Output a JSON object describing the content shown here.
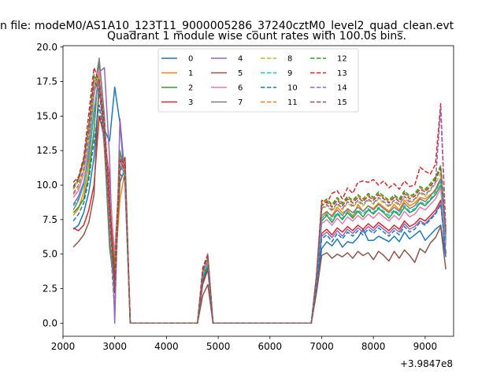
{
  "suptitle": "n file: modeM0/AS1A10_123T11_9000005286_37240cztM0_level2_quad_clean.evt",
  "chart_data": {
    "type": "line",
    "title": "Quadrant 1 module wise count rates with 100.0s bins.",
    "xlabel": "",
    "ylabel": "",
    "x_offset_label": "+3.9847e8",
    "xlim": [
      2000,
      9550
    ],
    "ylim": [
      -0.95,
      20.1
    ],
    "xticks": [
      2000,
      3000,
      4000,
      5000,
      6000,
      7000,
      8000,
      9000
    ],
    "yticks": [
      0.0,
      2.5,
      5.0,
      7.5,
      10.0,
      12.5,
      15.0,
      17.5,
      20.0
    ],
    "ytick_labels": [
      "0.0",
      "2.5",
      "5.0",
      "7.5",
      "10.0",
      "12.5",
      "15.0",
      "17.5",
      "20.0"
    ],
    "grid": false,
    "legend": {
      "placement": "top-center",
      "columns": 4
    },
    "x": [
      2200,
      2300,
      2400,
      2500,
      2600,
      2700,
      2800,
      2900,
      3000,
      3100,
      3200,
      3300,
      3400,
      4600,
      4700,
      4800,
      4900,
      5000,
      5100,
      6800,
      6900,
      7000,
      7100,
      7200,
      7300,
      7400,
      7500,
      7600,
      7700,
      7800,
      7900,
      8000,
      8100,
      8200,
      8300,
      8400,
      8500,
      8600,
      8700,
      8800,
      8900,
      9000,
      9100,
      9200,
      9300,
      9400
    ],
    "series": [
      {
        "name": "0",
        "color": "#1f77b4",
        "dash": false,
        "values": [
          6.8,
          7.1,
          8.0,
          9.5,
          12.0,
          17.0,
          14.0,
          13.2,
          17.1,
          14.5,
          10.0,
          0,
          0,
          0,
          3.0,
          4.0,
          0,
          0,
          0,
          0,
          2.5,
          5.4,
          5.9,
          5.6,
          6.1,
          5.5,
          5.9,
          5.8,
          6.2,
          6.8,
          6.0,
          6.0,
          6.3,
          6.1,
          5.9,
          6.3,
          5.9,
          6.6,
          6.1,
          6.4,
          6.7,
          6.0,
          6.4,
          6.8,
          7.1,
          4.8
        ]
      },
      {
        "name": "1",
        "color": "#ff7f0e",
        "dash": false,
        "values": [
          7.8,
          8.3,
          9.5,
          11.5,
          15.5,
          18.0,
          12.5,
          7.0,
          3.5,
          9.0,
          11.0,
          0,
          0,
          0,
          3.2,
          4.2,
          0,
          0,
          0,
          0,
          3.0,
          7.6,
          8.0,
          7.8,
          8.4,
          8.0,
          8.2,
          7.7,
          8.6,
          8.1,
          8.5,
          8.3,
          8.7,
          8.4,
          8.1,
          8.6,
          8.2,
          8.9,
          8.5,
          8.7,
          9.1,
          9.0,
          9.3,
          9.6,
          10.3,
          6.2
        ]
      },
      {
        "name": "2",
        "color": "#2ca02c",
        "dash": false,
        "values": [
          8.0,
          8.4,
          9.0,
          10.8,
          14.0,
          19.0,
          13.0,
          5.5,
          2.5,
          12.0,
          10.5,
          0,
          0,
          0,
          3.3,
          4.1,
          0,
          0,
          0,
          0,
          2.9,
          7.4,
          7.8,
          7.3,
          7.9,
          7.5,
          8.0,
          7.6,
          8.1,
          7.7,
          8.2,
          7.9,
          8.3,
          8.0,
          7.6,
          8.1,
          7.8,
          8.4,
          8.0,
          8.2,
          8.7,
          8.5,
          8.9,
          9.3,
          10.0,
          5.8
        ]
      },
      {
        "name": "3",
        "color": "#d62728",
        "dash": false,
        "values": [
          6.9,
          6.7,
          7.1,
          8.2,
          10.0,
          15.0,
          13.5,
          10.5,
          4.0,
          11.0,
          12.0,
          0,
          0,
          0,
          2.8,
          3.9,
          0,
          0,
          0,
          0,
          2.6,
          6.5,
          6.8,
          6.4,
          6.9,
          6.6,
          7.0,
          6.7,
          7.1,
          6.8,
          7.2,
          6.9,
          7.3,
          7.0,
          6.7,
          7.1,
          6.8,
          7.4,
          7.0,
          7.2,
          7.6,
          7.4,
          7.8,
          8.2,
          8.9,
          5.0
        ]
      },
      {
        "name": "4",
        "color": "#9467bd",
        "dash": false,
        "values": [
          8.6,
          9.2,
          10.2,
          12.0,
          15.2,
          18.2,
          18.5,
          12.0,
          0.0,
          14.8,
          10.6,
          0,
          0,
          0,
          3.4,
          4.4,
          0,
          0,
          0,
          0,
          2.7,
          6.3,
          6.6,
          6.2,
          6.7,
          6.3,
          6.8,
          6.5,
          6.9,
          6.6,
          7.0,
          6.7,
          7.1,
          6.8,
          6.5,
          6.9,
          6.6,
          7.2,
          6.8,
          7.0,
          7.4,
          7.2,
          7.6,
          8.0,
          8.7,
          5.0
        ]
      },
      {
        "name": "5",
        "color": "#8c564b",
        "dash": false,
        "values": [
          5.5,
          5.9,
          6.4,
          7.3,
          9.3,
          17.8,
          13.2,
          9.5,
          3.5,
          10.2,
          11.2,
          0,
          0,
          0,
          2.0,
          2.8,
          0,
          0,
          0,
          0,
          2.2,
          4.9,
          5.1,
          4.7,
          5.0,
          4.8,
          5.1,
          4.7,
          5.2,
          4.9,
          5.1,
          4.6,
          5.2,
          4.9,
          4.5,
          5.2,
          4.7,
          5.3,
          4.9,
          4.4,
          5.4,
          5.1,
          5.8,
          6.2,
          7.0,
          3.9
        ]
      },
      {
        "name": "6",
        "color": "#e377c2",
        "dash": false,
        "values": [
          9.1,
          9.6,
          10.8,
          13.0,
          16.5,
          18.4,
          14.5,
          9.5,
          5.0,
          11.8,
          10.8,
          0,
          0,
          0,
          3.6,
          4.5,
          0,
          0,
          0,
          0,
          3.1,
          7.2,
          7.5,
          7.1,
          7.6,
          7.2,
          7.7,
          7.4,
          7.8,
          7.5,
          7.9,
          7.6,
          8.0,
          7.7,
          7.4,
          7.8,
          7.5,
          8.1,
          7.7,
          7.9,
          8.4,
          8.2,
          8.6,
          9.0,
          9.8,
          5.6
        ]
      },
      {
        "name": "7",
        "color": "#7f7f7f",
        "dash": false,
        "values": [
          8.2,
          8.9,
          10.0,
          12.5,
          16.8,
          19.2,
          15.0,
          6.0,
          2.8,
          12.5,
          11.0,
          0,
          0,
          0,
          3.5,
          4.6,
          0,
          0,
          0,
          0,
          3.0,
          7.8,
          8.1,
          7.7,
          8.2,
          7.8,
          8.3,
          8.0,
          8.4,
          8.1,
          8.5,
          8.2,
          8.6,
          8.3,
          8.0,
          8.4,
          8.1,
          8.7,
          8.3,
          8.5,
          9.0,
          8.8,
          9.2,
          9.7,
          10.5,
          6.0
        ]
      },
      {
        "name": "8",
        "color": "#bcbd22",
        "dash": true,
        "values": [
          9.3,
          9.8,
          11.0,
          13.2,
          16.8,
          18.0,
          14.0,
          8.0,
          3.8,
          12.2,
          11.0,
          0,
          0,
          0,
          3.6,
          4.5,
          0,
          0,
          0,
          0,
          3.3,
          8.2,
          8.5,
          8.1,
          8.6,
          8.2,
          8.7,
          8.4,
          8.8,
          8.5,
          8.9,
          8.6,
          9.0,
          8.7,
          8.4,
          8.8,
          8.5,
          9.1,
          8.7,
          8.9,
          9.4,
          9.2,
          9.6,
          10.1,
          10.9,
          6.4
        ]
      },
      {
        "name": "9",
        "color": "#17becf",
        "dash": true,
        "values": [
          8.5,
          9.0,
          10.0,
          12.0,
          15.5,
          17.5,
          14.2,
          8.5,
          3.0,
          11.5,
          10.6,
          0,
          0,
          0,
          3.4,
          4.3,
          0,
          0,
          0,
          0,
          3.0,
          7.6,
          7.9,
          7.5,
          8.0,
          7.6,
          8.1,
          7.8,
          8.2,
          7.9,
          8.3,
          8.0,
          8.4,
          8.1,
          7.8,
          8.2,
          7.9,
          8.5,
          8.1,
          8.3,
          8.8,
          8.6,
          9.0,
          9.5,
          10.3,
          6.0
        ]
      },
      {
        "name": "10",
        "color": "#1f77b4",
        "dash": true,
        "values": [
          7.4,
          7.9,
          8.7,
          10.4,
          13.2,
          15.8,
          13.0,
          9.0,
          3.0,
          10.8,
          10.4,
          0,
          0,
          0,
          3.1,
          4.0,
          0,
          0,
          0,
          0,
          2.7,
          6.1,
          6.4,
          5.9,
          6.5,
          6.1,
          6.6,
          6.3,
          6.7,
          6.4,
          6.8,
          6.5,
          6.9,
          6.6,
          6.3,
          6.7,
          6.4,
          7.0,
          6.6,
          6.8,
          7.3,
          7.1,
          7.5,
          7.9,
          8.6,
          5.0
        ]
      },
      {
        "name": "11",
        "color": "#ff7f0e",
        "dash": true,
        "values": [
          9.7,
          10.3,
          11.6,
          14.0,
          17.8,
          17.0,
          13.6,
          8.0,
          4.2,
          12.0,
          11.2,
          0,
          0,
          0,
          3.7,
          4.6,
          0,
          0,
          0,
          0,
          3.3,
          8.6,
          8.9,
          8.5,
          9.0,
          8.6,
          9.1,
          8.8,
          9.2,
          8.9,
          9.3,
          9.0,
          9.4,
          9.1,
          8.8,
          9.2,
          8.9,
          9.5,
          9.1,
          9.3,
          9.8,
          9.6,
          10.0,
          10.5,
          11.3,
          6.6
        ]
      },
      {
        "name": "12",
        "color": "#2ca02c",
        "dash": true,
        "values": [
          9.8,
          10.4,
          11.7,
          14.2,
          18.0,
          17.2,
          13.8,
          8.2,
          4.0,
          12.2,
          11.4,
          0,
          0,
          0,
          3.8,
          4.7,
          0,
          0,
          0,
          0,
          3.4,
          8.7,
          9.0,
          8.6,
          9.1,
          8.7,
          9.2,
          8.9,
          9.3,
          9.0,
          9.4,
          9.1,
          9.5,
          9.2,
          8.9,
          9.3,
          9.0,
          9.6,
          9.2,
          9.4,
          9.9,
          9.7,
          10.1,
          10.6,
          11.4,
          6.7
        ]
      },
      {
        "name": "13",
        "color": "#d62728",
        "dash": true,
        "values": [
          10.2,
          10.6,
          12.0,
          15.2,
          18.5,
          17.5,
          14.5,
          9.0,
          3.2,
          12.0,
          11.4,
          0,
          0,
          0,
          4.0,
          5.0,
          0,
          0,
          0,
          0,
          3.5,
          8.9,
          8.7,
          9.4,
          9.6,
          9.0,
          9.8,
          9.4,
          10.2,
          10.3,
          10.2,
          10.4,
          10.0,
          10.3,
          9.8,
          10.1,
          9.7,
          10.3,
          9.9,
          10.0,
          11.3,
          11.0,
          10.8,
          11.5,
          15.9,
          6.8
        ]
      },
      {
        "name": "14",
        "color": "#9467bd",
        "dash": true,
        "values": [
          9.4,
          10.0,
          11.2,
          13.5,
          17.0,
          17.5,
          13.0,
          6.5,
          0.8,
          12.0,
          11.0,
          0,
          0,
          0,
          3.6,
          4.8,
          0,
          0,
          0,
          0,
          3.2,
          8.3,
          8.6,
          8.2,
          8.7,
          8.3,
          8.8,
          8.5,
          8.9,
          8.6,
          9.0,
          8.7,
          9.1,
          8.8,
          8.5,
          8.9,
          8.6,
          9.2,
          8.8,
          9.0,
          9.5,
          9.3,
          9.7,
          10.2,
          15.6,
          6.2
        ]
      },
      {
        "name": "15",
        "color": "#8c564b",
        "dash": true,
        "values": [
          9.9,
          10.5,
          11.8,
          14.4,
          17.6,
          16.8,
          13.4,
          7.8,
          2.2,
          11.8,
          11.0,
          0,
          0,
          0,
          3.8,
          4.9,
          0,
          0,
          0,
          0,
          3.4,
          8.5,
          8.8,
          8.4,
          8.9,
          8.5,
          9.0,
          8.7,
          9.1,
          8.8,
          9.2,
          8.9,
          9.3,
          9.0,
          8.7,
          9.1,
          8.8,
          9.4,
          9.0,
          9.2,
          9.7,
          9.5,
          9.9,
          10.4,
          11.2,
          6.6
        ]
      }
    ]
  }
}
